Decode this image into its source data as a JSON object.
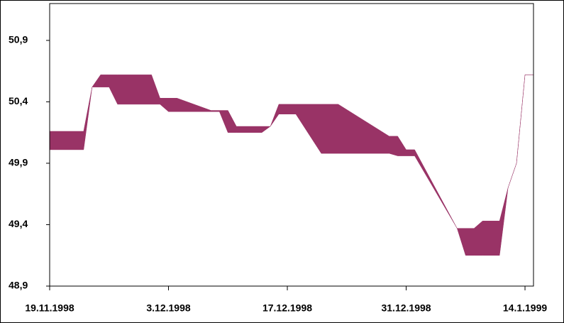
{
  "chart_data": {
    "type": "range-area",
    "x": [
      "19.11.1998",
      "23.11.1998",
      "24.11.1998",
      "25.11.1998",
      "26.11.1998",
      "27.11.1998",
      "1.12.1998",
      "2.12.1998",
      "3.12.1998",
      "4.12.1998",
      "8.12.1998",
      "9.12.1998",
      "10.12.1998",
      "11.12.1998",
      "14.12.1998",
      "15.12.1998",
      "16.12.1998",
      "18.12.1998",
      "21.12.1998",
      "23.12.1998",
      "29.12.1998",
      "30.12.1998",
      "31.12.1998",
      "1.1.1999",
      "6.1.1999",
      "7.1.1999",
      "8.1.1999",
      "9.1.1999",
      "11.1.1999",
      "12.1.1999",
      "13.1.1999",
      "14.1.1999",
      "15.1.1999"
    ],
    "series": [
      {
        "color": "#993366",
        "values": [
          50.16,
          50.16,
          50.52,
          50.62,
          50.62,
          50.62,
          50.62,
          50.43,
          50.43,
          50.43,
          50.33,
          50.33,
          50.33,
          50.2,
          50.2,
          50.2,
          50.38,
          50.38,
          50.38,
          50.38,
          50.12,
          50.12,
          50.01,
          50.01,
          49.37,
          49.37,
          49.37,
          49.43,
          49.43,
          49.7,
          49.9,
          50.62,
          50.62
        ]
      },
      {
        "color": "#993366",
        "values": [
          50.01,
          50.01,
          50.52,
          50.52,
          50.52,
          50.38,
          50.38,
          50.38,
          50.32,
          50.32,
          50.32,
          50.32,
          50.15,
          50.15,
          50.15,
          50.2,
          50.3,
          50.3,
          49.98,
          49.98,
          49.98,
          49.96,
          49.96,
          49.96,
          49.37,
          49.15,
          49.15,
          49.15,
          49.15,
          49.7,
          49.9,
          50.62,
          50.62
        ]
      }
    ],
    "xlim": [
      "19.11.1998",
      "15.1.1999"
    ],
    "xticks": [
      "19.11.1998",
      "3.12.1998",
      "17.12.1998",
      "31.12.1998",
      "14.1.1999"
    ],
    "ylim": [
      48.9,
      51.2
    ],
    "yticks": [
      {
        "value": 48.9,
        "label": "48,9"
      },
      {
        "value": 49.4,
        "label": "49,4"
      },
      {
        "value": 49.9,
        "label": "49,9"
      },
      {
        "value": 50.4,
        "label": "50,4"
      },
      {
        "value": 50.9,
        "label": "50,9"
      }
    ],
    "grid": false
  }
}
